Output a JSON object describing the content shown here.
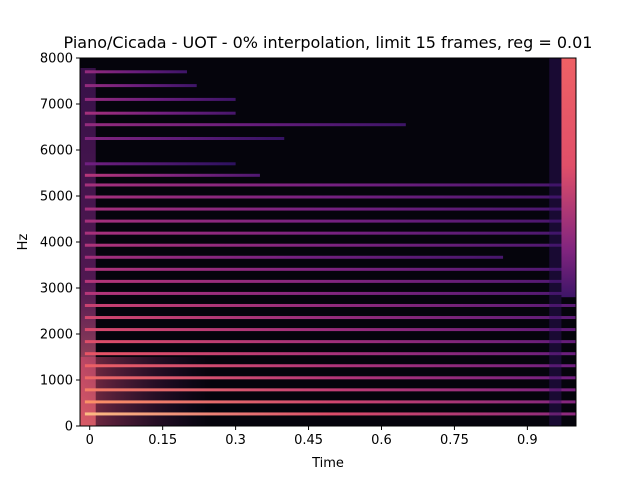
{
  "chart_data": {
    "type": "heatmap",
    "title": "Piano/Cicada - UOT - 0% interpolation, limit 15 frames, reg = 0.01",
    "xlabel": "Time",
    "ylabel": "Hz",
    "xlim": [
      -0.02,
      1.0
    ],
    "ylim": [
      0,
      8000
    ],
    "x_ticks": [
      {
        "value": 0,
        "label": "0"
      },
      {
        "value": 0.15,
        "label": "0.15"
      },
      {
        "value": 0.3,
        "label": "0.3"
      },
      {
        "value": 0.45,
        "label": "0.45"
      },
      {
        "value": 0.6,
        "label": "0.6"
      },
      {
        "value": 0.75,
        "label": "0.75"
      },
      {
        "value": 0.9,
        "label": "0.9"
      }
    ],
    "y_ticks": [
      {
        "value": 0,
        "label": "0"
      },
      {
        "value": 1000,
        "label": "1000"
      },
      {
        "value": 2000,
        "label": "2000"
      },
      {
        "value": 3000,
        "label": "3000"
      },
      {
        "value": 4000,
        "label": "4000"
      },
      {
        "value": 5000,
        "label": "5000"
      },
      {
        "value": 6000,
        "label": "6000"
      },
      {
        "value": 7000,
        "label": "7000"
      },
      {
        "value": 8000,
        "label": "8000"
      }
    ],
    "colormap": "magma",
    "background_color": "#05040c",
    "harmonic_fundamental_hz": 262,
    "harmonics": [
      {
        "hz": 262,
        "intensity": 0.95,
        "decay_end": 1.0
      },
      {
        "hz": 524,
        "intensity": 0.9,
        "decay_end": 1.0
      },
      {
        "hz": 786,
        "intensity": 0.85,
        "decay_end": 1.0
      },
      {
        "hz": 1048,
        "intensity": 0.8,
        "decay_end": 1.0
      },
      {
        "hz": 1310,
        "intensity": 0.78,
        "decay_end": 1.0
      },
      {
        "hz": 1572,
        "intensity": 0.75,
        "decay_end": 1.0
      },
      {
        "hz": 1834,
        "intensity": 0.72,
        "decay_end": 1.0
      },
      {
        "hz": 2096,
        "intensity": 0.7,
        "decay_end": 1.0
      },
      {
        "hz": 2358,
        "intensity": 0.68,
        "decay_end": 1.0
      },
      {
        "hz": 2620,
        "intensity": 0.66,
        "decay_end": 1.0
      },
      {
        "hz": 2882,
        "intensity": 0.6,
        "decay_end": 1.0
      },
      {
        "hz": 3144,
        "intensity": 0.6,
        "decay_end": 1.0
      },
      {
        "hz": 3406,
        "intensity": 0.58,
        "decay_end": 1.0
      },
      {
        "hz": 3668,
        "intensity": 0.55,
        "decay_end": 0.85
      },
      {
        "hz": 3930,
        "intensity": 0.58,
        "decay_end": 1.0
      },
      {
        "hz": 4192,
        "intensity": 0.56,
        "decay_end": 1.0
      },
      {
        "hz": 4454,
        "intensity": 0.55,
        "decay_end": 1.0
      },
      {
        "hz": 4716,
        "intensity": 0.55,
        "decay_end": 1.0
      },
      {
        "hz": 4978,
        "intensity": 0.55,
        "decay_end": 1.0
      },
      {
        "hz": 5240,
        "intensity": 0.55,
        "decay_end": 1.0
      },
      {
        "hz": 5450,
        "intensity": 0.6,
        "decay_end": 0.35
      },
      {
        "hz": 5700,
        "intensity": 0.4,
        "decay_end": 0.3
      },
      {
        "hz": 6250,
        "intensity": 0.45,
        "decay_end": 0.4
      },
      {
        "hz": 6550,
        "intensity": 0.5,
        "decay_end": 0.65
      },
      {
        "hz": 6800,
        "intensity": 0.55,
        "decay_end": 0.3
      },
      {
        "hz": 7100,
        "intensity": 0.5,
        "decay_end": 0.3
      },
      {
        "hz": 7400,
        "intensity": 0.5,
        "decay_end": 0.22
      },
      {
        "hz": 7700,
        "intensity": 0.5,
        "decay_end": 0.2
      }
    ],
    "cicada_band": {
      "x_start": 0.97,
      "x_end": 1.0,
      "hz_min": 2800,
      "hz_max": 8000
    }
  }
}
